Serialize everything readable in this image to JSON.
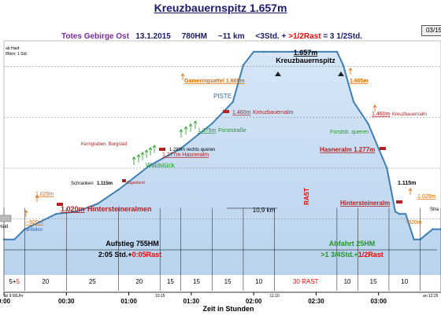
{
  "header": {
    "title": "Kreuzbauernspitz 1.657m",
    "subtitle_region": "Totes Gebirge Ost",
    "subtitle_date": "13.1.2015",
    "subtitle_hm": "780HM",
    "subtitle_km": "~11 km",
    "subtitle_time_black": "<3Std. +",
    "subtitle_time_red": ">1/2Rast",
    "subtitle_time_total": "= 3 1/2Std.",
    "page_indicator": "03/15"
  },
  "colors": {
    "fill": "#b9d3ee",
    "profile_line": "#3e7fb4",
    "orange": "#e06a00",
    "dark_red": "#b22222",
    "green": "#1f9a1f",
    "blue": "#2e6db0",
    "red": "#ff0000",
    "navy": "#1a1a6e"
  },
  "chart_data": {
    "type": "area",
    "xlabel": "Zeit in Stunden",
    "x_ticks": [
      "0:00",
      "00:30",
      "01:00",
      "01:30",
      "02:00",
      "02:30",
      "03:00"
    ],
    "x_tick_minutes": [
      0,
      30,
      60,
      90,
      120,
      150,
      180
    ],
    "extra_ticks": [
      {
        "minute": 0,
        "label": "ab 9:00Uhr"
      },
      {
        "minute": 75,
        "label": "10:15"
      },
      {
        "minute": 130,
        "label": "11:10"
      },
      {
        "minute": 205,
        "label": "an 12:25"
      }
    ],
    "ylim_m": [
      780,
      1700
    ],
    "xlim_min": [
      0,
      210
    ],
    "profile": {
      "minutes": [
        0,
        5,
        10,
        25,
        35,
        45,
        55,
        70,
        85,
        100,
        110,
        115,
        120,
        125,
        130,
        140,
        150,
        160,
        163,
        168,
        175,
        180,
        184,
        186,
        188,
        190,
        193,
        197,
        200,
        203,
        206,
        210
      ],
      "elevation_m": [
        920,
        920,
        960,
        1020,
        1029,
        1060,
        1115,
        1210,
        1277,
        1375,
        1460,
        1605,
        1657,
        1657,
        1657,
        1657,
        1657,
        1657,
        1605,
        1460,
        1375,
        1277,
        1200,
        1115,
        1029,
        1020,
        1020,
        920,
        920,
        940,
        960,
        960
      ]
    },
    "segments": [
      {
        "label": "5+",
        "label_red": "5"
      },
      {
        "label": "20"
      },
      {
        "label": "25"
      },
      {
        "label": "20"
      },
      {
        "label": "15"
      },
      {
        "label": "15"
      },
      {
        "label": "15"
      },
      {
        "label": "10"
      },
      {
        "label_red": "30 RAST"
      },
      {
        "label": "10"
      },
      {
        "label": "15"
      },
      {
        "label": "10"
      }
    ],
    "segment_boundaries_min": [
      0,
      10,
      30,
      55,
      75,
      85,
      100,
      115,
      130,
      160,
      170,
      185,
      200,
      210
    ],
    "annotations": {
      "haid_note_1": "ab Haid:",
      "haid_note_2": "86km; 1 Std.",
      "start_label": "Haid",
      "start_elev": "~920m",
      "start_sub": "anfellen",
      "alm1_elev": "1.029m",
      "alm1_name_elev": "1.020m",
      "alm1_name": "Hintersteineralmen",
      "schranken": "Schranken",
      "schranken_elev": "1.115m",
      "zagastand": "Zagastand",
      "kerngraben": "Kerngraben, Burgstall",
      "waldstueck": "Waldstück",
      "rechts_queren": "1.280m rechts queren",
      "hasneralm": "1.277m Hasneralm",
      "forststrasse_elev": "1.375m",
      "forststrasse": "Forststraße",
      "kreuz_alm_elev": "1.460m",
      "kreuz_alm": "Kreuzbauernalm",
      "piste": "PISTE",
      "gameringsattel": "Gameringsattel 1.605m",
      "summit_elev": "1.657m",
      "summit_name": "Kreuzbauernspitz",
      "distance": "10,9 km",
      "rast": "RAST",
      "r_sattel_elev": "1.605m",
      "r_kreuz_alm_elev": "1.460m",
      "r_kreuz_alm": "Kreuzbauernalm",
      "r_forststr": "Forststr. queren",
      "r_hasneralm": "Hasneralm 1.277m",
      "r_115": "1.115m",
      "r_alm_elev": "1.029m",
      "r_hinterst": "Hintersteineralm",
      "r_920": "~920m",
      "r_stra": "Stra"
    },
    "aufstieg": {
      "title": "Aufstieg 755HM",
      "time_black": "2:05 Std.+",
      "time_red": "0:05Rast"
    },
    "abfahrt": {
      "title": "Abfahrt 25HM",
      "time_black": ">1 3/4Std.+",
      "time_red": "1/2Rast"
    }
  }
}
